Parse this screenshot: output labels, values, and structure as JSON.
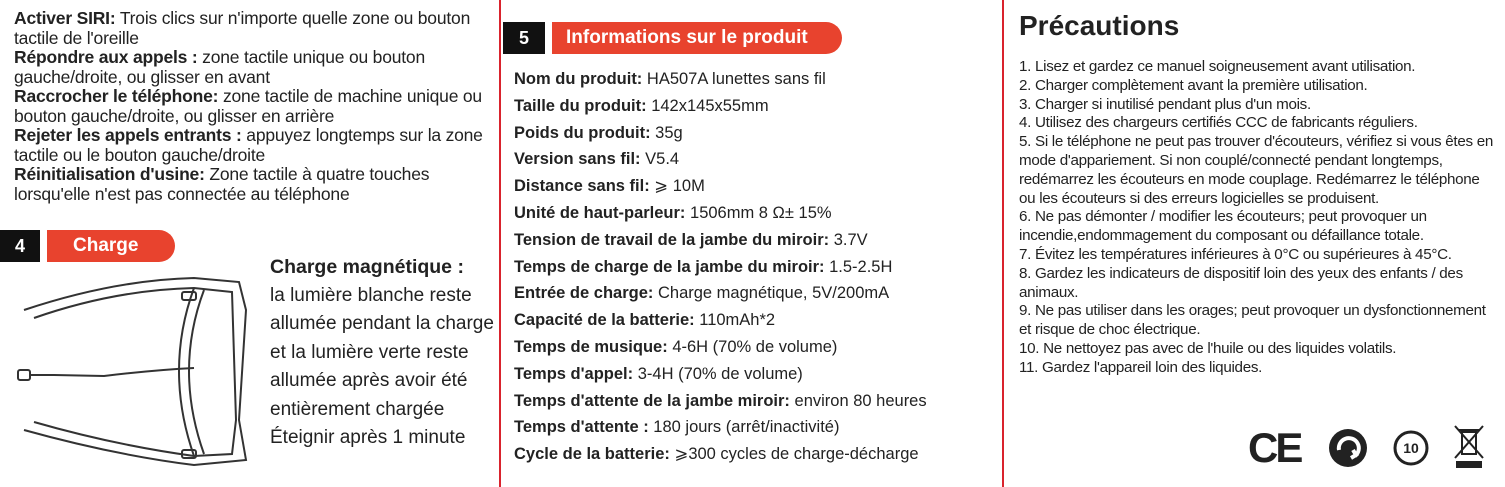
{
  "left": {
    "items": [
      {
        "label": "Activer SIRI:",
        "text": " Trois clics sur n'importe quelle zone ou bouton tactile de l'oreille"
      },
      {
        "label": "Répondre aux appels :",
        "text": " zone tactile unique ou bouton gauche/droite, ou glisser en avant"
      },
      {
        "label": "Raccrocher le téléphone:",
        "text": " zone tactile de machine unique ou bouton gauche/droite, ou glisser en arrière"
      },
      {
        "label": "Rejeter les appels entrants :",
        "text": " appuyez longtemps sur la zone tactile ou le bouton gauche/droite"
      },
      {
        "label": "Réinitialisation d'usine:",
        "text": " Zone tactile à quatre touches lorsqu'elle n'est pas connectée au téléphone"
      }
    ],
    "section": {
      "number": "4",
      "title": "Charge"
    },
    "charge": {
      "title": "Charge magnétique :",
      "text": "la lumière blanche reste allumée pendant la charge et la lumière verte reste allumée après avoir été entièrement chargée Éteignir après 1 minute"
    }
  },
  "middle": {
    "section": {
      "number": "5",
      "title": "Informations sur le produit"
    },
    "rows": [
      {
        "label": "Nom du produit:",
        "value": " HA507A lunettes sans fil"
      },
      {
        "label": "Taille du produit:",
        "value": " 142x145x55mm"
      },
      {
        "label": "Poids du produit:",
        "value": " 35g"
      },
      {
        "label": "Version sans fil:",
        "value": " V5.4"
      },
      {
        "label": "Distance sans fil:",
        "value": " ⩾ 10M"
      },
      {
        "label": "Unité de haut-parleur:",
        "value": " 1506mm 8 Ω± 15%"
      },
      {
        "label": "Tension de travail de la jambe du miroir:",
        "value": " 3.7V"
      },
      {
        "label": "Temps de charge de la jambe du miroir:",
        "value": " 1.5-2.5H"
      },
      {
        "label": "Entrée de charge:",
        "value": " Charge magnétique, 5V/200mA"
      },
      {
        "label": "Capacité de la batterie:",
        "value": " 110mAh*2"
      },
      {
        "label": "Temps de musique:",
        "value": " 4-6H (70% de volume)"
      },
      {
        "label": "Temps d'appel:",
        "value": " 3-4H (70% de volume)"
      },
      {
        "label": "Temps d'attente de la jambe miroir:",
        "value": " environ 80 heures"
      },
      {
        "label": "Temps d'attente :",
        "value": " 180 jours (arrêt/inactivité)"
      },
      {
        "label": "Cycle de la batterie:",
        "value": " ⩾300 cycles de charge-décharge"
      }
    ]
  },
  "right": {
    "title": "Précautions",
    "items": [
      "1. Lisez et gardez ce manuel soigneusement avant utilisation.",
      "2. Charger complètement avant la première utilisation.",
      "3. Charger si inutilisé pendant plus d'un mois.",
      "4. Utilisez des chargeurs certifiés CCC de fabricants réguliers.",
      "5. Si le téléphone ne peut pas trouver d'écouteurs, vérifiez si vous êtes en mode d'appariement. Si non couplé/connecté pendant longtemps, redémarrez les écouteurs en mode couplage.  Redémarrez le téléphone ou les écouteurs si des erreurs logicielles se produisent.",
      "6. Ne pas démonter / modifier les écouteurs; peut provoquer un incendie,endommagement du composant ou défaillance totale.",
      "7. Évitez les températures inférieures à 0°C ou supérieures à 45°C.",
      "8. Gardez les indicateurs de dispositif loin des yeux des enfants / des animaux.",
      "9. Ne pas utiliser dans les orages; peut provoquer un dysfonctionnement et risque de choc électrique.",
      "10. Ne nettoyez pas avec de l'huile ou des liquides volatils.",
      "11. Gardez l'appareil loin des liquides."
    ],
    "marks": {
      "ce": "CE",
      "epup": "10"
    }
  }
}
